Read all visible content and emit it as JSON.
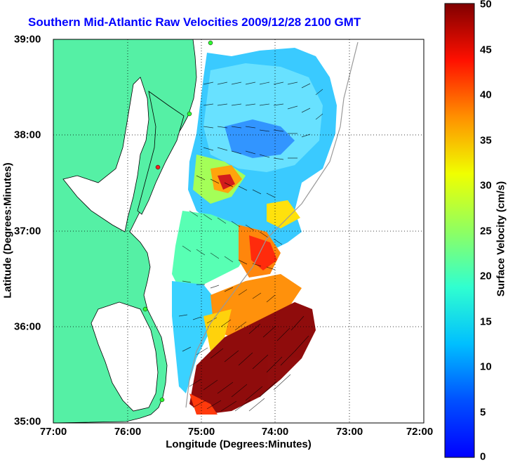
{
  "title": "Southern Mid-Atlantic Raw Velocities 2009/12/28 2100 GMT",
  "x_axis_label": "Longitude (Degrees:Minutes)",
  "y_axis_label": "Latitude (Degrees:Minutes)",
  "x_ticks": [
    "77:00",
    "76:00",
    "75:00",
    "74:00",
    "73:00",
    "72:00"
  ],
  "y_ticks": [
    "39:00",
    "38:00",
    "37:00",
    "36:00",
    "35:00"
  ],
  "colorbar": {
    "label": "Surface Velocity (cm/s)",
    "ticks": [
      "50",
      "45",
      "40",
      "35",
      "30",
      "25",
      "20",
      "15",
      "10",
      "5",
      "0"
    ],
    "min": 0,
    "max": 50,
    "colormap": "jet"
  },
  "colors": {
    "title": "#0000ff",
    "land": "#55f0a5",
    "ocean": "#ffffff",
    "grid": "#000000"
  },
  "map_extent": {
    "lon_min": -77.0,
    "lon_max": -72.0,
    "lat_min": 35.0,
    "lat_max": 39.0
  }
}
